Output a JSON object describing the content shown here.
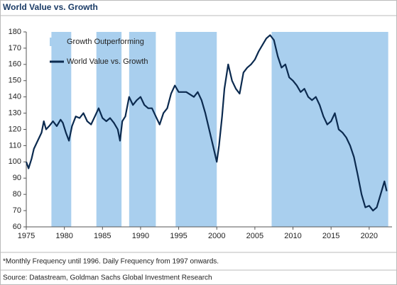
{
  "chart_data": {
    "type": "line",
    "title": "World Value vs. Growth",
    "x": [
      1975,
      1975.3,
      1975.7,
      1976,
      1976.5,
      1977,
      1977.3,
      1977.6,
      1978,
      1978.5,
      1979,
      1979.5,
      1979.8,
      1980.2,
      1980.6,
      1981,
      1981.5,
      1982,
      1982.5,
      1983,
      1983.5,
      1984,
      1984.5,
      1985,
      1985.5,
      1986,
      1986.5,
      1987,
      1987.3,
      1987.6,
      1988,
      1988.5,
      1989,
      1989.5,
      1990,
      1990.5,
      1991,
      1991.5,
      1992,
      1992.5,
      1993,
      1993.5,
      1994,
      1994.5,
      1995,
      1996,
      1997,
      1997.5,
      1998,
      1998.5,
      1999,
      1999.5,
      2000,
      2000.3,
      2000.7,
      2001,
      2001.5,
      2002,
      2002.5,
      2003,
      2003.5,
      2004,
      2004.5,
      2005,
      2005.5,
      2006,
      2006.5,
      2007,
      2007.5,
      2008,
      2008.5,
      2009,
      2009.5,
      2010,
      2010.5,
      2011,
      2011.5,
      2012,
      2012.5,
      2013,
      2013.5,
      2014,
      2014.5,
      2015,
      2015.5,
      2016,
      2016.5,
      2017,
      2017.5,
      2018,
      2018.5,
      2019,
      2019.5,
      2020,
      2020.5,
      2021,
      2021.5,
      2022,
      2022.3
    ],
    "series": [
      {
        "name": "World Value vs. Growth",
        "color": "#0b2a4f",
        "values": [
          100,
          96,
          102,
          108,
          113,
          118,
          125,
          120,
          122,
          125,
          122,
          126,
          124,
          118,
          113,
          122,
          128,
          127,
          130,
          125,
          123,
          128,
          133,
          127,
          125,
          127,
          124,
          120,
          113,
          125,
          128,
          140,
          135,
          138,
          140,
          135,
          133,
          133,
          128,
          123,
          130,
          133,
          142,
          147,
          143,
          143,
          140,
          143,
          138,
          130,
          120,
          110,
          100,
          110,
          128,
          145,
          160,
          150,
          145,
          142,
          155,
          158,
          160,
          163,
          168,
          172,
          176,
          178,
          175,
          165,
          158,
          160,
          152,
          150,
          147,
          143,
          145,
          140,
          138,
          140,
          135,
          128,
          123,
          125,
          130,
          120,
          118,
          115,
          110,
          103,
          92,
          80,
          72,
          73,
          70,
          72,
          80,
          88,
          82
        ]
      }
    ],
    "shaded_regions": {
      "name": "Growth Outperforming",
      "color": "#a9cfee",
      "spans": [
        [
          1978.3,
          1980.9
        ],
        [
          1984.2,
          1987.5
        ],
        [
          1988.5,
          1992
        ],
        [
          1994.6,
          2000
        ],
        [
          2007.2,
          2022.5
        ]
      ]
    },
    "xlim": [
      1975,
      2023
    ],
    "ylim": [
      60,
      180
    ],
    "xticks": [
      1975,
      1980,
      1985,
      1990,
      1995,
      2000,
      2005,
      2010,
      2015,
      2020
    ],
    "yticks": [
      60,
      70,
      80,
      90,
      100,
      110,
      120,
      130,
      140,
      150,
      160,
      170,
      180
    ],
    "legend": "upper left"
  },
  "footnote": "*Monthly Frequency until 1996. Daily Frequency from 1997 onwards.",
  "source": "Source: Datastream, Goldman Sachs Global Investment Research"
}
